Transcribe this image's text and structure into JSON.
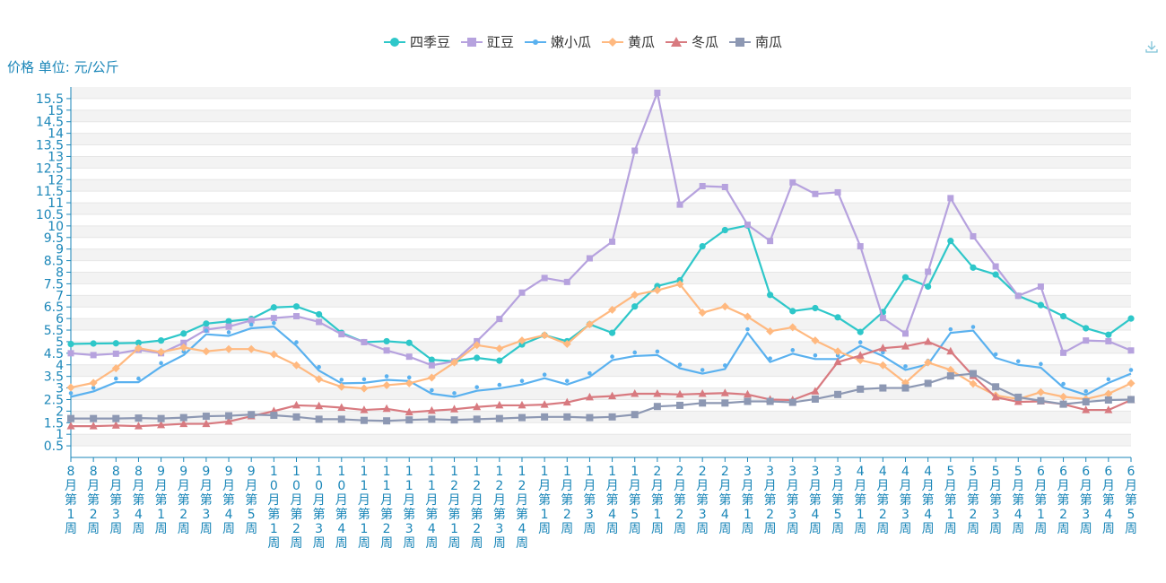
{
  "toolbar": {
    "icon": "download-icon"
  },
  "chart_data": {
    "type": "line",
    "ylabel": "价格 单位: 元/公斤",
    "xlabel": "",
    "ylim": [
      0,
      16
    ],
    "y_ticks": [
      "0.5",
      "1",
      "1.5",
      "2",
      "2.5",
      "3",
      "3.5",
      "4",
      "4.5",
      "5",
      "5.5",
      "6",
      "6.5",
      "7",
      "7.5",
      "8",
      "8.5",
      "9",
      "9.5",
      "10",
      "10.5",
      "11",
      "11.5",
      "12",
      "12.5",
      "13",
      "13.5",
      "14",
      "14.5",
      "15",
      "15.5"
    ],
    "grid": true,
    "legend_position": "top-center",
    "categories": [
      "8月第1周",
      "8月第2周",
      "8月第3周",
      "8月第4周",
      "9月第1周",
      "9月第2周",
      "9月第3周",
      "9月第4周",
      "9月第5周",
      "10月第1周",
      "10月第2周",
      "10月第3周",
      "10月第4周",
      "11月第1周",
      "11月第2周",
      "11月第3周",
      "11月第4周",
      "12月第1周",
      "12月第2周",
      "12月第3周",
      "12月第4周",
      "1月第1周",
      "1月第2周",
      "1月第3周",
      "1月第4周",
      "1月第5周",
      "2月第1周",
      "2月第2周",
      "2月第3周",
      "2月第4周",
      "3月第1周",
      "3月第2周",
      "3月第3周",
      "3月第4周",
      "3月第5周",
      "4月第1周",
      "4月第2周",
      "4月第3周",
      "4月第4周",
      "5月第1周",
      "5月第2周",
      "5月第3周",
      "5月第4周",
      "6月第1周",
      "6月第2周",
      "6月第3周",
      "6月第4周",
      "6月第5周"
    ],
    "series": [
      {
        "name": "四季豆",
        "color": "#2ec7c9",
        "marker": "circle",
        "values": [
          4.9,
          4.92,
          4.93,
          4.95,
          5.05,
          5.35,
          5.78,
          5.88,
          5.98,
          6.48,
          6.52,
          6.18,
          5.38,
          4.98,
          5.02,
          4.95,
          4.22,
          4.15,
          4.3,
          4.18,
          4.88,
          5.28,
          5.02,
          5.75,
          5.38,
          6.52,
          7.4,
          7.65,
          9.12,
          9.82,
          10.02,
          7.02,
          6.32,
          6.45,
          6.05,
          5.42,
          6.28,
          7.78,
          7.38,
          9.35,
          8.2,
          7.9,
          6.98,
          6.58,
          6.1,
          5.58,
          5.3,
          6
        ]
      },
      {
        "name": "豇豆",
        "color": "#b6a2de",
        "marker": "square",
        "values": [
          4.5,
          4.42,
          4.48,
          4.65,
          4.5,
          4.95,
          5.52,
          5.65,
          5.92,
          6.02,
          6.1,
          5.85,
          5.32,
          4.98,
          4.62,
          4.35,
          3.98,
          4.15,
          5.02,
          5.98,
          7.12,
          7.75,
          7.58,
          8.6,
          9.32,
          13.25,
          15.75,
          10.92,
          11.72,
          11.68,
          10.05,
          9.35,
          11.88,
          11.38,
          11.45,
          9.12,
          6.02,
          5.35,
          8.02,
          11.2,
          9.55,
          8.25,
          6.98,
          7.38,
          4.52,
          5.05,
          5.02,
          4.62
        ]
      },
      {
        "name": "嫩小瓜",
        "color": "#5ab1ef",
        "marker": "pin",
        "values": [
          2.62,
          2.85,
          3.25,
          3.25,
          3.92,
          4.42,
          5.32,
          5.25,
          5.58,
          5.65,
          4.82,
          3.75,
          3.2,
          3.22,
          3.35,
          3.3,
          2.75,
          2.62,
          2.88,
          2.98,
          3.15,
          3.42,
          3.15,
          3.48,
          4.2,
          4.38,
          4.42,
          3.85,
          3.62,
          3.82,
          5.38,
          4.12,
          4.48,
          4.25,
          4.25,
          4.82,
          4.38,
          3.78,
          4.02,
          5.38,
          5.48,
          4.3,
          4.0,
          3.88,
          3.02,
          2.7,
          3.22,
          3.62
        ]
      },
      {
        "name": "黄瓜",
        "color": "#ffb980",
        "marker": "diamond",
        "values": [
          3.02,
          3.22,
          3.85,
          4.72,
          4.55,
          4.75,
          4.58,
          4.68,
          4.68,
          4.45,
          3.98,
          3.38,
          3.05,
          2.98,
          3.12,
          3.2,
          3.45,
          4.1,
          4.85,
          4.7,
          5.05,
          5.28,
          4.9,
          5.75,
          6.38,
          7.02,
          7.22,
          7.48,
          6.25,
          6.52,
          6.08,
          5.45,
          5.62,
          5.05,
          4.58,
          4.2,
          3.98,
          3.22,
          4.1,
          3.78,
          3.18,
          2.68,
          2.52,
          2.82,
          2.62,
          2.52,
          2.75,
          3.2
        ]
      },
      {
        "name": "冬瓜",
        "color": "#d87a80",
        "marker": "triangle",
        "values": [
          1.35,
          1.35,
          1.38,
          1.35,
          1.4,
          1.45,
          1.45,
          1.55,
          1.78,
          2.0,
          2.25,
          2.22,
          2.15,
          2.05,
          2.1,
          1.95,
          2.02,
          2.08,
          2.18,
          2.25,
          2.25,
          2.28,
          2.38,
          2.6,
          2.65,
          2.75,
          2.75,
          2.72,
          2.75,
          2.78,
          2.72,
          2.5,
          2.48,
          2.85,
          4.12,
          4.4,
          4.72,
          4.8,
          5.0,
          4.58,
          3.52,
          2.6,
          2.4,
          2.42,
          2.3,
          2.05,
          2.05,
          2.48
        ]
      },
      {
        "name": "南瓜",
        "color": "#8d98b3",
        "marker": "rect",
        "values": [
          1.68,
          1.68,
          1.68,
          1.7,
          1.68,
          1.72,
          1.78,
          1.8,
          1.85,
          1.82,
          1.75,
          1.65,
          1.65,
          1.6,
          1.58,
          1.62,
          1.65,
          1.62,
          1.65,
          1.68,
          1.72,
          1.75,
          1.75,
          1.72,
          1.75,
          1.85,
          2.2,
          2.25,
          2.35,
          2.35,
          2.42,
          2.42,
          2.38,
          2.52,
          2.72,
          2.95,
          3.0,
          3.0,
          3.2,
          3.52,
          3.62,
          3.05,
          2.6,
          2.45,
          2.3,
          2.4,
          2.48,
          2.5
        ]
      }
    ]
  }
}
